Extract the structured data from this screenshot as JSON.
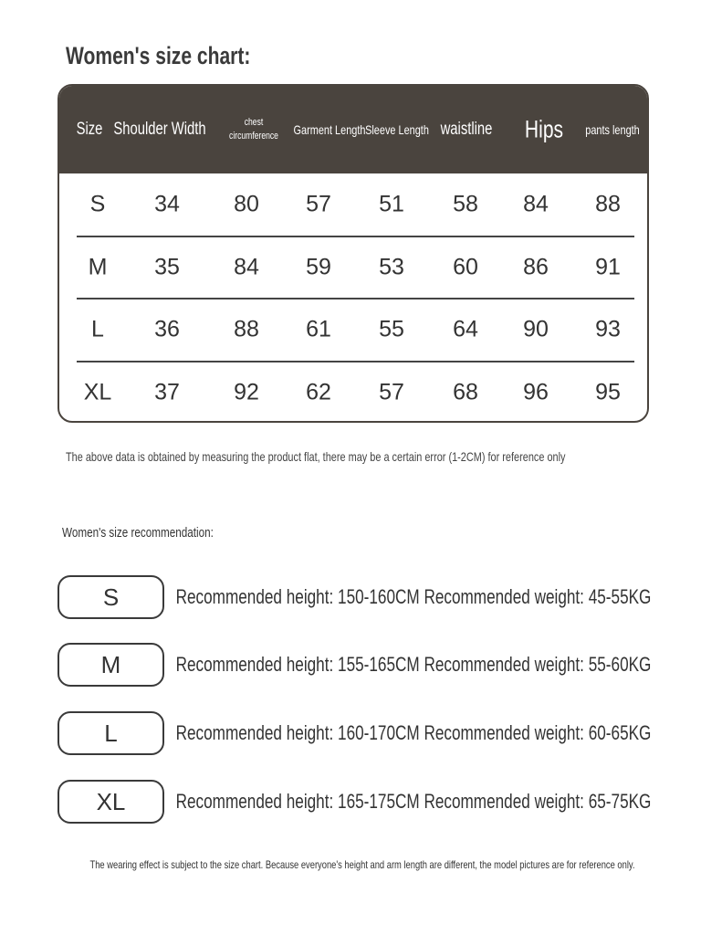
{
  "title": "Women's size chart:",
  "table": {
    "headers": [
      "Size",
      "Shoulder Width",
      "chest circumference",
      "Garment Length",
      "Sleeve Length",
      "waistline",
      "Hips",
      "pants length"
    ],
    "rows": [
      [
        "S",
        "34",
        "80",
        "57",
        "51",
        "58",
        "84",
        "88"
      ],
      [
        "M",
        "35",
        "84",
        "59",
        "53",
        "60",
        "86",
        "91"
      ],
      [
        "L",
        "36",
        "88",
        "61",
        "55",
        "64",
        "90",
        "93"
      ],
      [
        "XL",
        "37",
        "92",
        "62",
        "57",
        "68",
        "96",
        "95"
      ]
    ],
    "header_color": "#4a443e"
  },
  "note_measure": "The above data is obtained by measuring the product flat, there may be a certain error (1-2CM) for reference only",
  "recommendation": {
    "heading": "Women's size recommendation:",
    "items": [
      {
        "size": "S",
        "text": "Recommended height: 150-160CM Recommended weight: 45-55KG"
      },
      {
        "size": "M",
        "text": "Recommended height: 155-165CM Recommended weight: 55-60KG"
      },
      {
        "size": "L",
        "text": "Recommended height: 160-170CM Recommended weight: 60-65KG"
      },
      {
        "size": "XL",
        "text": "Recommended height: 165-175CM Recommended weight: 65-75KG"
      }
    ]
  },
  "note_wearing": "The wearing effect is subject to the size chart. Because everyone's height and arm length are different, the model pictures are for reference only."
}
